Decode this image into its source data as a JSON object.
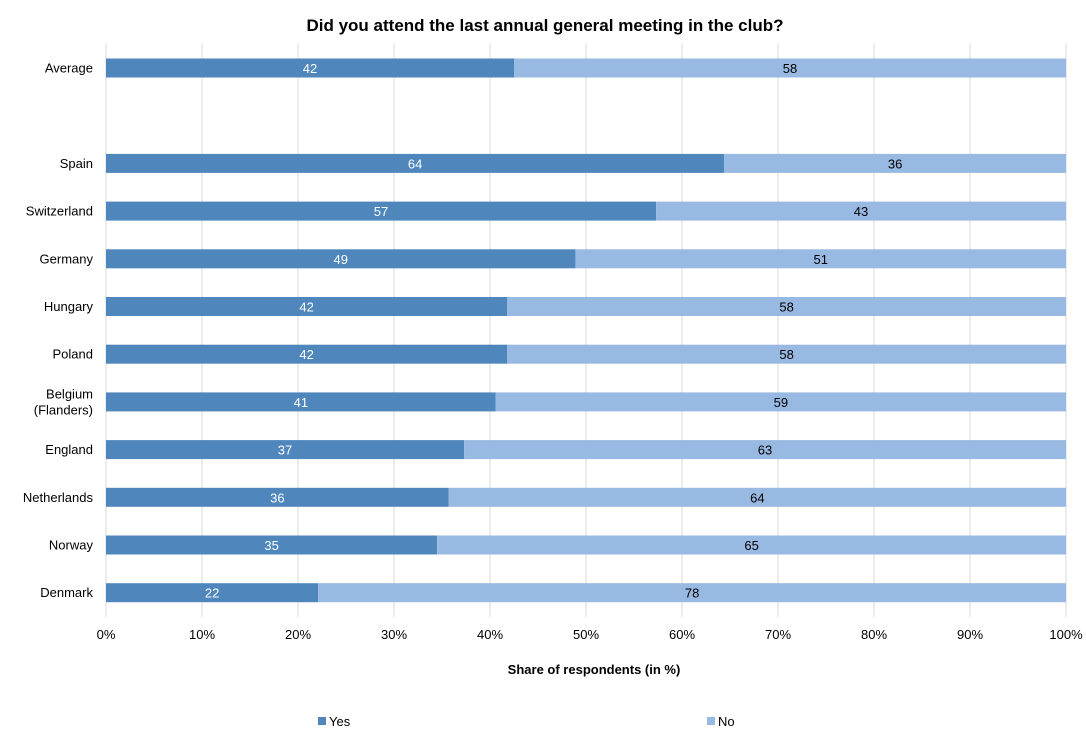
{
  "chart_data": {
    "type": "bar",
    "orientation": "horizontal",
    "stacked": true,
    "title": "Did you attend the last annual general meeting in the club?",
    "xlabel": "Share of respondents (in %)",
    "ylabel": "",
    "xlim": [
      0,
      100
    ],
    "x_ticks": [
      "0%",
      "10%",
      "20%",
      "30%",
      "40%",
      "50%",
      "60%",
      "70%",
      "80%",
      "90%",
      "100%"
    ],
    "grid": true,
    "legend_position": "bottom",
    "categories": [
      [
        "Average"
      ],
      [
        ""
      ],
      [
        "Spain"
      ],
      [
        "Switzerland"
      ],
      [
        "Germany"
      ],
      [
        "Hungary"
      ],
      [
        "Poland"
      ],
      [
        "Belgium",
        "(Flanders)"
      ],
      [
        "England"
      ],
      [
        "Netherlands"
      ],
      [
        "Norway"
      ],
      [
        "Denmark"
      ]
    ],
    "series": [
      {
        "name": "Yes",
        "color": "#4f87bd",
        "label_color": "#ffffff",
        "values": [
          42.5,
          null,
          64.4,
          57.3,
          48.9,
          41.8,
          41.8,
          40.6,
          37.3,
          35.7,
          34.5,
          22.1
        ],
        "labels": [
          "42",
          "",
          "64",
          "57",
          "49",
          "42",
          "42",
          "41",
          "37",
          "36",
          "35",
          "22"
        ]
      },
      {
        "name": "No",
        "color": "#98b9e1",
        "label_color": "#000000",
        "values": [
          57.5,
          null,
          35.6,
          42.7,
          51.1,
          58.2,
          58.2,
          59.4,
          62.7,
          64.3,
          65.5,
          77.9
        ],
        "labels": [
          "58",
          "",
          "36",
          "43",
          "51",
          "58",
          "58",
          "59",
          "63",
          "64",
          "65",
          "78"
        ]
      }
    ]
  }
}
